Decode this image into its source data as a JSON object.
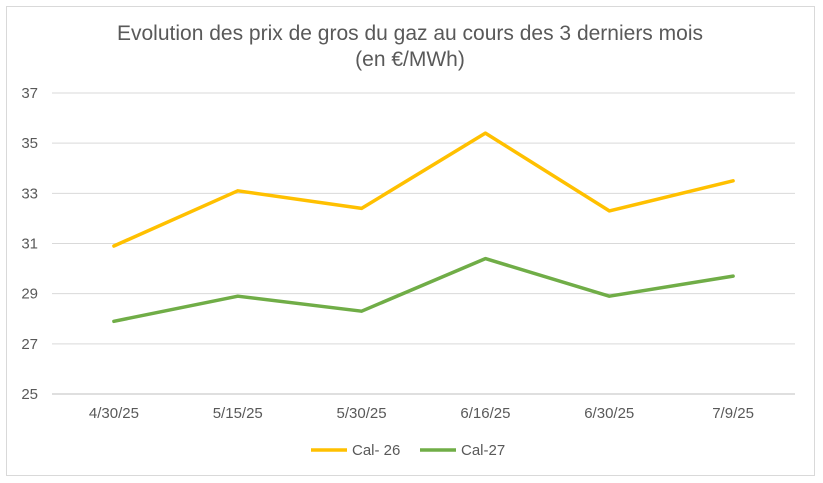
{
  "chart_data": {
    "type": "line",
    "title": "Evolution des prix de gros du gaz au cours des 3 derniers mois",
    "subtitle": "(en €/MWh)",
    "categories": [
      "4/30/25",
      "5/15/25",
      "5/30/25",
      "6/16/25",
      "6/30/25",
      "7/9/25"
    ],
    "series": [
      {
        "name": "Cal- 26",
        "color": "#FFC000",
        "values": [
          30.9,
          33.1,
          32.4,
          35.4,
          32.3,
          33.5
        ]
      },
      {
        "name": "Cal-27",
        "color": "#70AD47",
        "values": [
          27.9,
          28.9,
          28.3,
          30.4,
          28.9,
          29.7
        ]
      }
    ],
    "yticks": [
      "25",
      "27",
      "29",
      "31",
      "33",
      "35",
      "37"
    ],
    "ylim": [
      25,
      37
    ],
    "grid": true,
    "legend_position": "bottom",
    "xlabel": "",
    "ylabel": ""
  }
}
